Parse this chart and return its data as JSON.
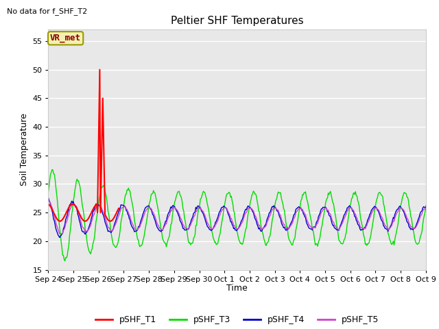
{
  "title": "Peltier SHF Temperatures",
  "no_data_text": "No data for f_SHF_T2",
  "ylabel": "Soil Temperature",
  "xlabel": "Time",
  "ylim": [
    15,
    57
  ],
  "yticks": [
    15,
    20,
    25,
    30,
    35,
    40,
    45,
    50,
    55
  ],
  "bg_outer": "#ffffff",
  "bg_plot": "#e8e8e8",
  "grid_color": "#ffffff",
  "annotation_label": "VR_met",
  "annotation_bg": "#f5f0b0",
  "annotation_border": "#999900",
  "annotation_text_color": "#880000",
  "colors": {
    "pSHF_T1": "#ff0000",
    "pSHF_T3": "#00dd00",
    "pSHF_T4": "#0000cc",
    "pSHF_T5": "#cc44cc"
  },
  "x_tick_labels": [
    "Sep 24",
    "Sep 25",
    "Sep 26",
    "Sep 27",
    "Sep 28",
    "Sep 29",
    "Sep 30",
    "Oct 1",
    "Oct 2",
    "Oct 3",
    "Oct 4",
    "Oct 5",
    "Oct 6",
    "Oct 7",
    "Oct 8",
    "Oct 9"
  ],
  "n_points": 500
}
